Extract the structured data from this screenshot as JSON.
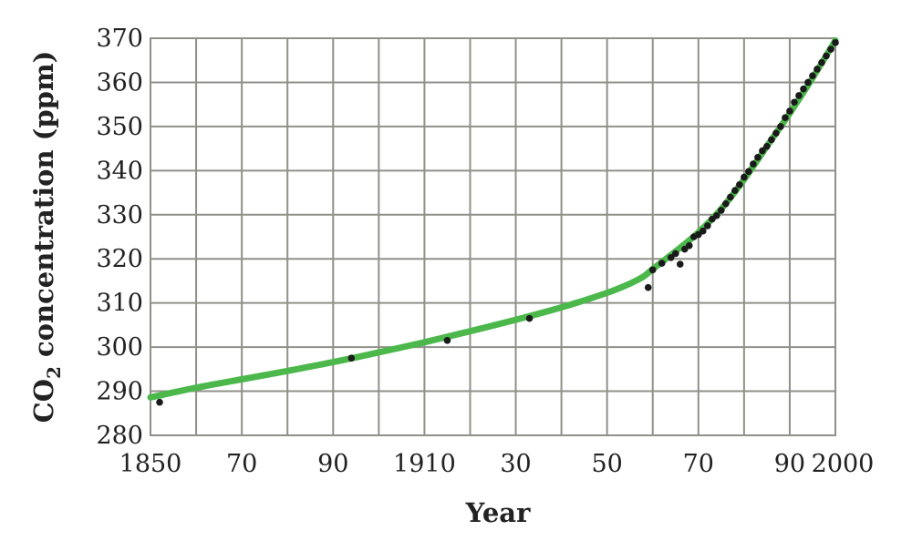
{
  "chart_data": {
    "type": "scatter",
    "xlabel": "Year",
    "ylabel": {
      "prefix": "CO",
      "subscript": "2",
      "suffix": " concentration (ppm)"
    },
    "xlim": [
      1850,
      2000
    ],
    "ylim": [
      280,
      370
    ],
    "x_ticks": [
      {
        "value": 1850,
        "label": "1850"
      },
      {
        "value": 1870,
        "label": "70"
      },
      {
        "value": 1890,
        "label": "90"
      },
      {
        "value": 1910,
        "label": "1910"
      },
      {
        "value": 1930,
        "label": "30"
      },
      {
        "value": 1950,
        "label": "50"
      },
      {
        "value": 1970,
        "label": "70"
      },
      {
        "value": 1990,
        "label": "90"
      },
      {
        "value": 2000,
        "label": "2000"
      }
    ],
    "x_grid_step": 10,
    "y_ticks": [
      280,
      290,
      300,
      310,
      320,
      330,
      340,
      350,
      360,
      370
    ],
    "grid": true,
    "colors": {
      "fit_line": "#4cb84c",
      "points": "#1a1a1a",
      "grid": "#8f9189"
    },
    "series": [
      {
        "kind": "points",
        "x": [
          1852,
          1894,
          1915,
          1933,
          1959,
          1960,
          1962,
          1964,
          1965,
          1966,
          1967,
          1968,
          1969,
          1970,
          1971,
          1972,
          1973,
          1974,
          1975,
          1976,
          1977,
          1978,
          1979,
          1980,
          1981,
          1982,
          1983,
          1984,
          1985,
          1986,
          1987,
          1988,
          1989,
          1990,
          1991,
          1992,
          1993,
          1994,
          1995,
          1996,
          1997,
          1998,
          1999,
          2000
        ],
        "y": [
          287.5,
          297.5,
          301.5,
          306.5,
          313.5,
          317.5,
          319.0,
          320.3,
          321.2,
          318.8,
          322.2,
          323.0,
          325.0,
          325.5,
          326.3,
          327.5,
          329.0,
          329.8,
          331.0,
          332.5,
          334.0,
          335.5,
          336.8,
          338.5,
          339.8,
          341.5,
          343.0,
          344.5,
          345.5,
          347.0,
          348.5,
          350.0,
          352.0,
          353.5,
          355.5,
          357.0,
          358.5,
          360.0,
          361.5,
          363.0,
          364.5,
          366.0,
          367.5,
          369.0
        ]
      },
      {
        "kind": "fit_line",
        "x": [
          1850,
          1860,
          1870,
          1880,
          1890,
          1900,
          1910,
          1920,
          1930,
          1940,
          1950,
          1955,
          1958,
          1960,
          1965,
          1970,
          1975,
          1980,
          1985,
          1990,
          1995,
          2000
        ],
        "y": [
          288.6,
          290.8,
          292.7,
          294.6,
          296.6,
          298.8,
          301.1,
          303.6,
          306.2,
          309.0,
          312.3,
          314.4,
          316.0,
          317.7,
          321.7,
          326.0,
          331.3,
          338.0,
          345.5,
          353.0,
          361.0,
          369.5
        ]
      }
    ]
  }
}
